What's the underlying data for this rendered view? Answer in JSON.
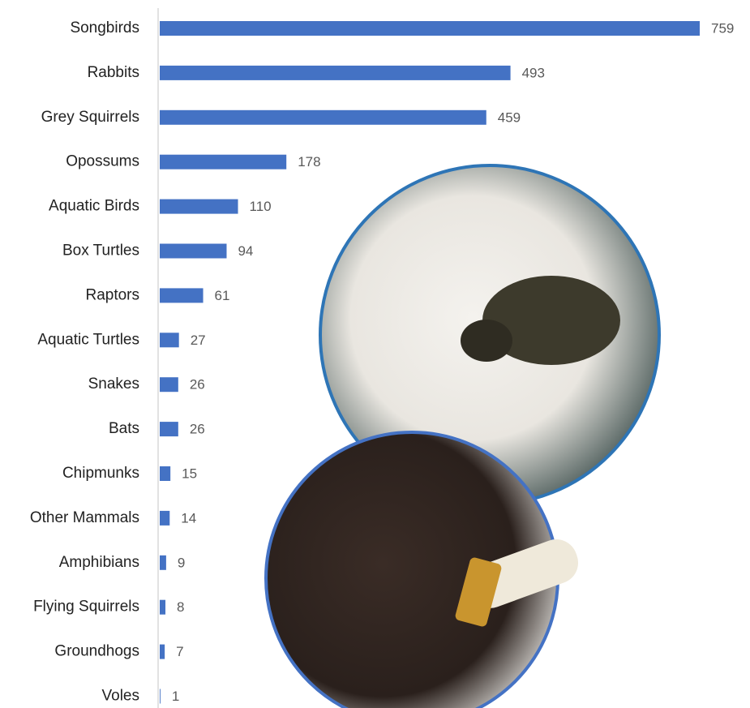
{
  "chart_data": {
    "type": "bar",
    "orientation": "horizontal",
    "color": "#4472c4",
    "categories": [
      "Songbirds",
      "Rabbits",
      "Grey Squirrels",
      "Opossums",
      "Aquatic Birds",
      "Box Turtles",
      "Raptors",
      "Aquatic Turtles",
      "Snakes",
      "Bats",
      "Chipmunks",
      "Other Mammals",
      "Amphibians",
      "Flying Squirrels",
      "Groundhogs",
      "Voles"
    ],
    "values": [
      759,
      493,
      459,
      178,
      110,
      94,
      61,
      27,
      26,
      26,
      15,
      14,
      9,
      8,
      7,
      1
    ]
  }
}
